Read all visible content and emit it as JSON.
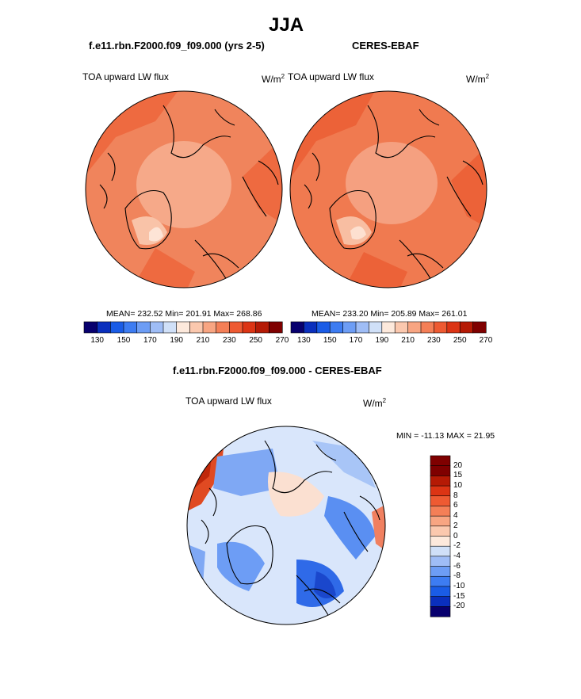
{
  "page_title": "JJA",
  "panel_left": {
    "subtitle": "f.e11.rbn.F2000.f09_f09.000 (yrs 2-5)",
    "label": "TOA upward LW flux",
    "unit_base": "W/m",
    "unit_exp": "2",
    "stats": "MEAN= 232.52  Min= 201.91  Max= 268.86"
  },
  "panel_right": {
    "subtitle": "CERES-EBAF",
    "label": "TOA upward LW flux",
    "unit_base": "W/m",
    "unit_exp": "2",
    "stats": "MEAN= 233.20  Min= 205.89  Max= 261.01"
  },
  "panel_diff": {
    "subtitle": "f.e11.rbn.F2000.f09_f09.000 - CERES-EBAF",
    "label": "TOA upward LW flux",
    "unit_base": "W/m",
    "unit_exp": "2",
    "minmax": "MIN = -11.13 MAX =  21.95"
  },
  "colors": {
    "abs_scale": [
      "#08006e",
      "#0a2fbd",
      "#1a5ce6",
      "#3d7cf2",
      "#6d9df5",
      "#9fbdf6",
      "#d0e0f8",
      "#fde9dc",
      "#fbc8ae",
      "#f8a582",
      "#f47f57",
      "#ee5a32",
      "#dc3414",
      "#b51a05",
      "#7f0000"
    ],
    "diff_scale": [
      "#08006e",
      "#0a2fbd",
      "#1a5ce6",
      "#3d7cf2",
      "#6d9df5",
      "#9fbdf6",
      "#d0e0f8",
      "#fde9dc",
      "#fbc8ae",
      "#f8a582",
      "#f47f57",
      "#ee5a32",
      "#dc3414",
      "#b51a05",
      "#7f0000"
    ],
    "map_left_base": "#f0845c",
    "map_right_base": "#f07a50",
    "map_diff_base": "#d9e6fb"
  },
  "chart_data": [
    {
      "type": "heatmap",
      "title": "TOA upward LW flux",
      "subtitle": "f.e11.rbn.F2000.f09_f09.000 (yrs 2-5)",
      "units": "W/m2",
      "projection": "north polar stereographic",
      "mean": 232.52,
      "min": 201.91,
      "max": 268.86,
      "colorbar_ticks": [
        "130",
        "150",
        "170",
        "190",
        "210",
        "230",
        "250",
        "270"
      ],
      "colorbar_levels": [
        130,
        140,
        150,
        160,
        170,
        180,
        190,
        200,
        210,
        220,
        230,
        240,
        250,
        260,
        270
      ]
    },
    {
      "type": "heatmap",
      "title": "TOA upward LW flux",
      "subtitle": "CERES-EBAF",
      "units": "W/m2",
      "projection": "north polar stereographic",
      "mean": 233.2,
      "min": 205.89,
      "max": 261.01,
      "colorbar_ticks": [
        "130",
        "150",
        "170",
        "190",
        "210",
        "230",
        "250",
        "270"
      ],
      "colorbar_levels": [
        130,
        140,
        150,
        160,
        170,
        180,
        190,
        200,
        210,
        220,
        230,
        240,
        250,
        260,
        270
      ]
    },
    {
      "type": "heatmap",
      "title": "TOA upward LW flux",
      "subtitle": "f.e11.rbn.F2000.f09_f09.000 - CERES-EBAF",
      "units": "W/m2",
      "projection": "north polar stereographic",
      "min": -11.13,
      "max": 21.95,
      "colorbar_ticks": [
        "20",
        "15",
        "10",
        "8",
        "6",
        "4",
        "2",
        "0",
        "-2",
        "-4",
        "-6",
        "-8",
        "-10",
        "-15",
        "-20"
      ]
    }
  ]
}
